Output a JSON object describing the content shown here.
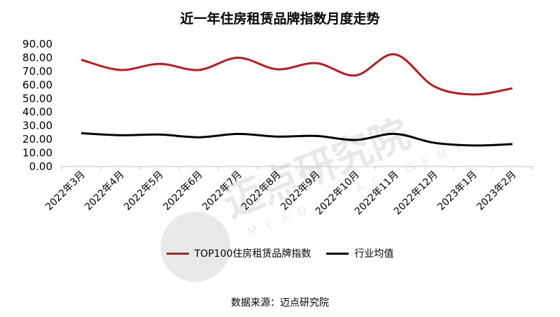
{
  "title": "近一年住房租赁品牌指数月度走势",
  "source": "数据来源：迈点研究院",
  "watermark": {
    "text": "迈点研究院",
    "subtext": "MEADIN ACADEMY"
  },
  "colors": {
    "series1": "#c0181d",
    "series2": "#000000",
    "axis": "#bfbfbf"
  },
  "chart_data": {
    "type": "line",
    "title": "近一年住房租赁品牌指数月度走势",
    "categories": [
      "2022年3月",
      "2022年4月",
      "2022年5月",
      "2022年6月",
      "2022年7月",
      "2022年8月",
      "2022年9月",
      "2022年10月",
      "2022年11月",
      "2022年12月",
      "2023年1月",
      "2023年2月"
    ],
    "ylim": [
      0,
      90
    ],
    "yticks": [
      "0.00",
      "10.00",
      "20.00",
      "30.00",
      "40.00",
      "50.00",
      "60.00",
      "70.00",
      "80.00",
      "90.00"
    ],
    "grid": false,
    "legend": "bottom",
    "series": [
      {
        "name": "TOP100住房租赁品牌指数",
        "color": "#c0181d",
        "values": [
          78.5,
          71.0,
          75.5,
          71.0,
          80.0,
          71.5,
          76.0,
          67.0,
          82.5,
          59.0,
          53.0,
          57.5
        ]
      },
      {
        "name": "行业均值",
        "color": "#000000",
        "values": [
          24.5,
          23.0,
          23.5,
          21.5,
          24.0,
          22.0,
          22.5,
          19.5,
          24.0,
          17.5,
          15.5,
          16.5
        ]
      }
    ]
  }
}
